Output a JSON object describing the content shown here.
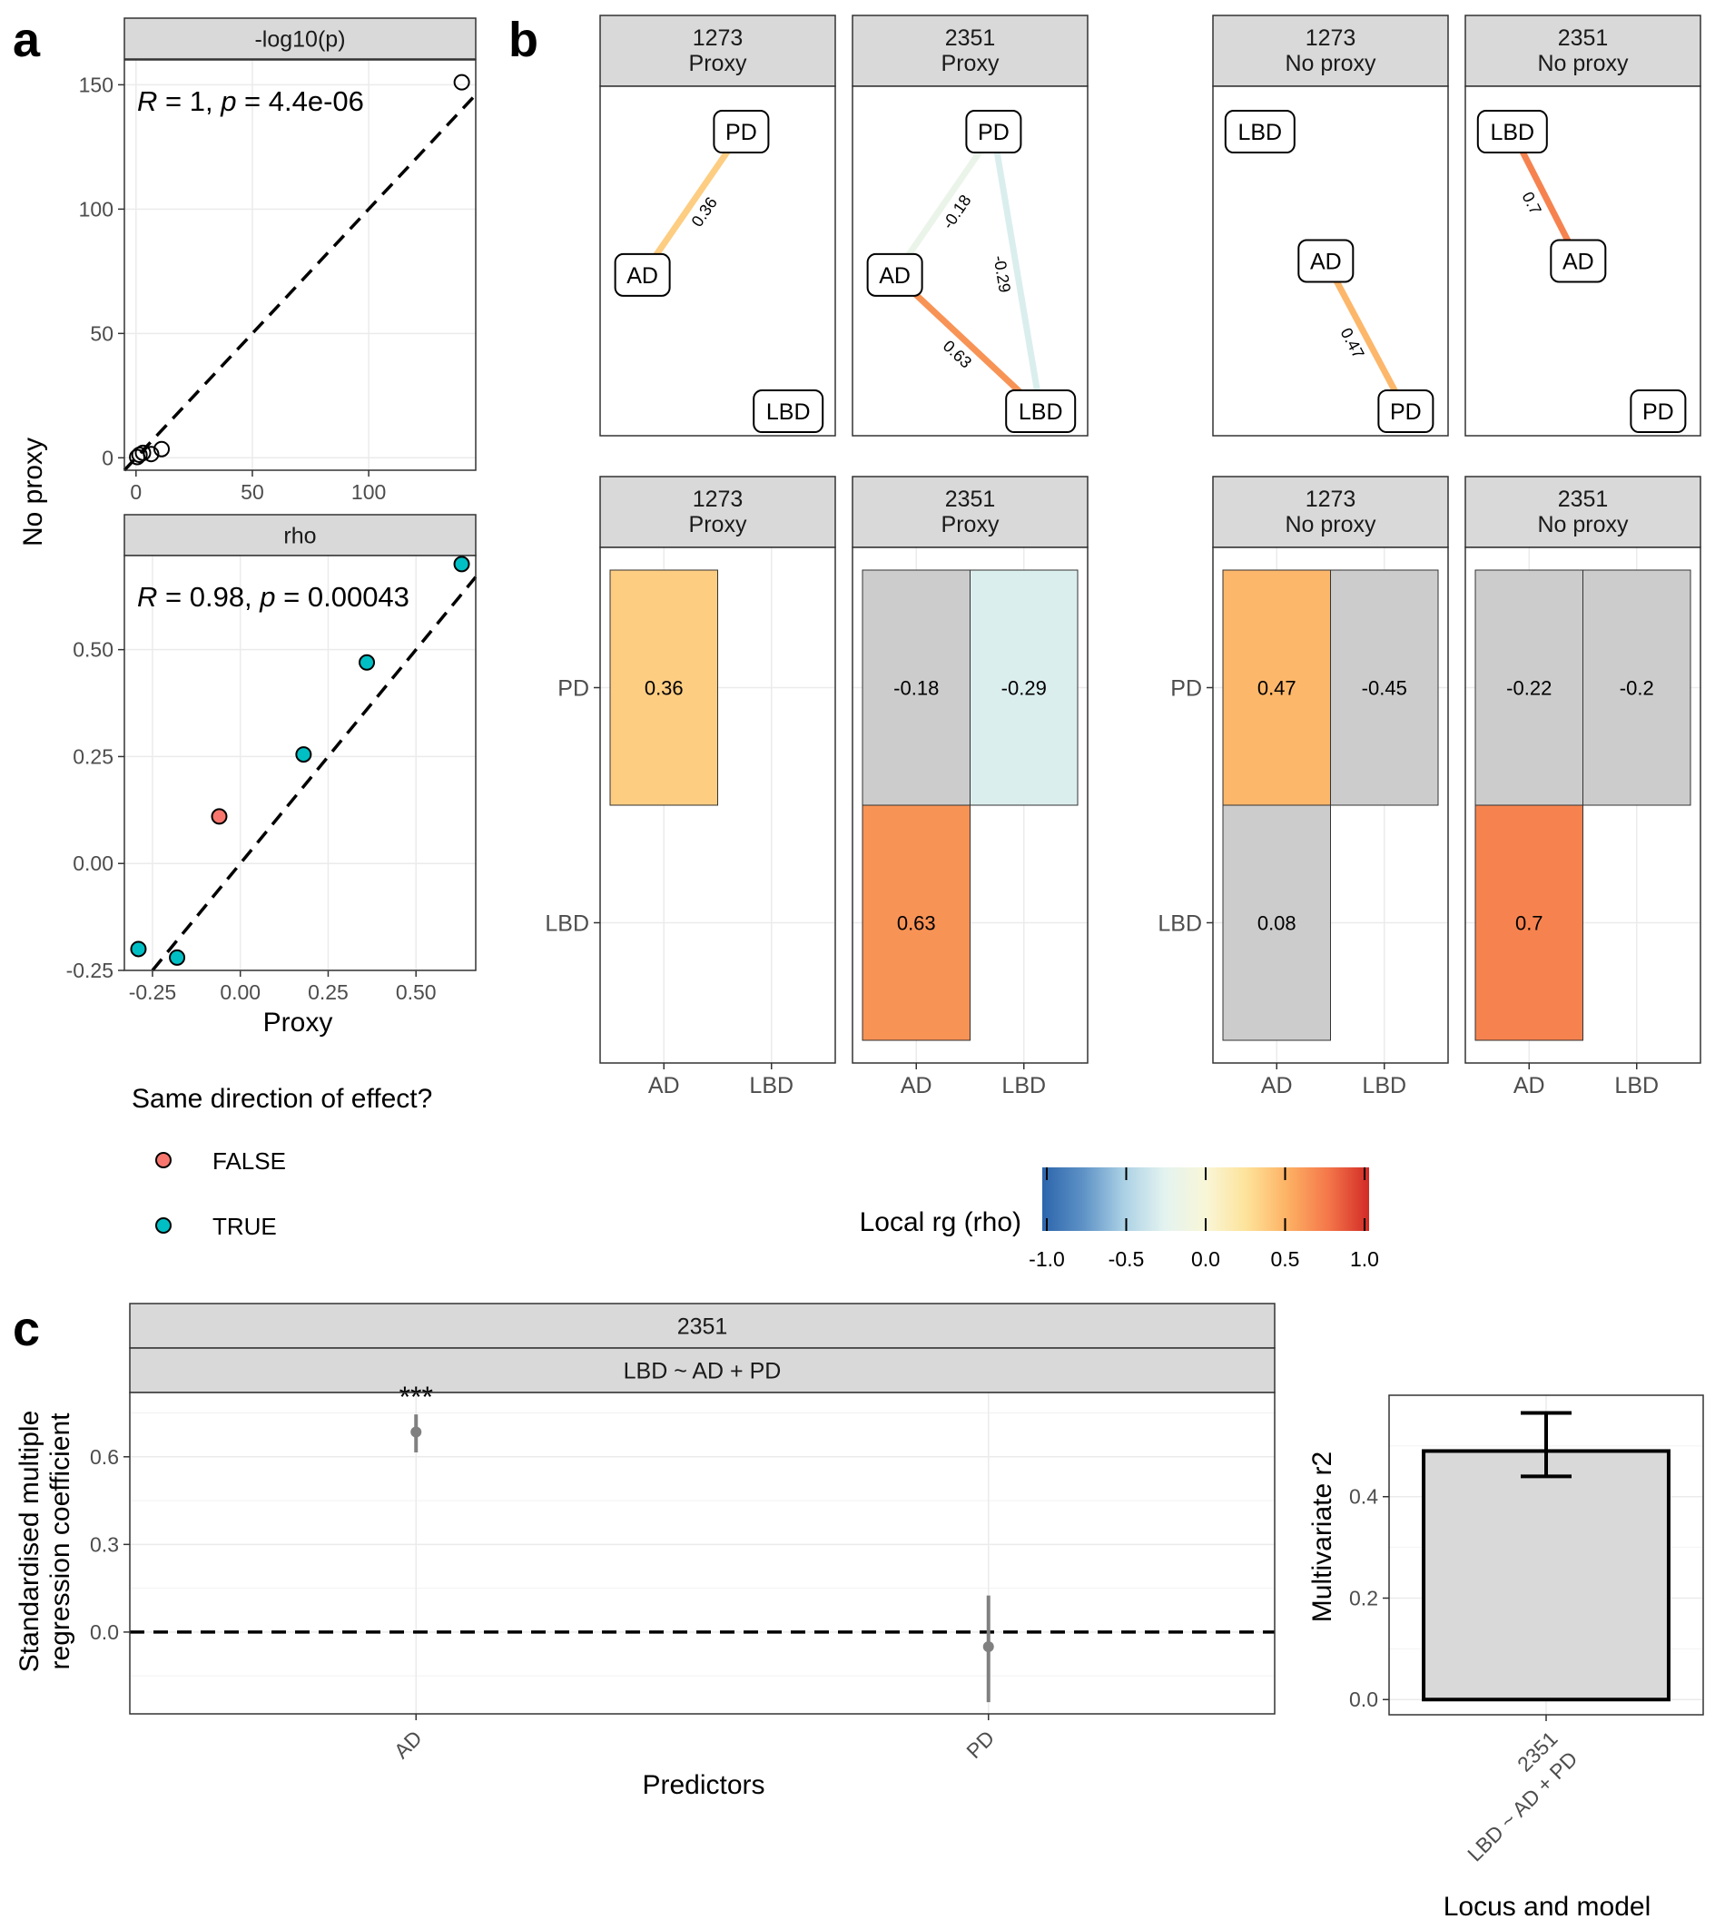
{
  "panel_labels": {
    "a": "a",
    "b": "b",
    "c": "c"
  },
  "chart_data": [
    {
      "id": "a1",
      "type": "scatter",
      "strip": "-log10(p)",
      "points": [
        [
          0.5,
          0.3
        ],
        [
          1.5,
          1.2
        ],
        [
          3.0,
          2.0
        ],
        [
          6.5,
          1.5
        ],
        [
          11,
          3.5
        ],
        [
          140,
          151
        ]
      ],
      "annotation": {
        "R": "1",
        "p": "4.4e-06"
      },
      "xlim": [
        -5,
        146
      ],
      "ylim": [
        -5,
        160
      ],
      "xticks": [
        0,
        50,
        100
      ],
      "yticks": [
        0,
        50,
        100,
        150
      ],
      "reference_line": "y = x",
      "grid": true
    },
    {
      "id": "a2",
      "type": "scatter",
      "strip": "rho",
      "points": [
        {
          "x": -0.06,
          "y": 0.11,
          "same": "FALSE"
        },
        {
          "x": -0.29,
          "y": -0.2,
          "same": "TRUE"
        },
        {
          "x": -0.18,
          "y": -0.22,
          "same": "TRUE"
        },
        {
          "x": 0.18,
          "y": 0.255,
          "same": "TRUE"
        },
        {
          "x": 0.36,
          "y": 0.47,
          "same": "TRUE"
        },
        {
          "x": 0.63,
          "y": 0.7,
          "same": "TRUE"
        }
      ],
      "annotation": {
        "R": "0.98",
        "p": "0.00043"
      },
      "xlim": [
        -0.33,
        0.67
      ],
      "ylim": [
        -0.25,
        0.72
      ],
      "xticks": [
        "-0.25",
        "0.00",
        "0.25",
        "0.50"
      ],
      "yticks": [
        "-0.25",
        "0.00",
        "0.25",
        "0.50"
      ],
      "reference_line": "y = x",
      "grid": true
    }
  ],
  "panel_a": {
    "xlabel": "Proxy",
    "ylabel": "No proxy"
  },
  "legend_a": {
    "title": "Same direction of effect?",
    "items": [
      {
        "label": "FALSE",
        "color": "#F8766D"
      },
      {
        "label": "TRUE",
        "color": "#00BFC4"
      }
    ]
  },
  "network_panels": [
    {
      "line1": "1273",
      "line2": "Proxy",
      "nodes": {
        "PD": [
          0.6,
          0.13
        ],
        "AD": [
          0.18,
          0.54
        ],
        "LBD": [
          0.8,
          0.93
        ]
      },
      "edges": [
        {
          "from": "AD",
          "to": "PD",
          "rho": 0.36,
          "label": "0.36"
        }
      ]
    },
    {
      "line1": "2351",
      "line2": "Proxy",
      "nodes": {
        "PD": [
          0.6,
          0.13
        ],
        "AD": [
          0.18,
          0.54
        ],
        "LBD": [
          0.8,
          0.93
        ]
      },
      "edges": [
        {
          "from": "AD",
          "to": "PD",
          "rho": -0.18,
          "label": "-0.18"
        },
        {
          "from": "PD",
          "to": "LBD",
          "rho": -0.29,
          "label": "-0.29"
        },
        {
          "from": "AD",
          "to": "LBD",
          "rho": 0.63,
          "label": "0.63"
        }
      ]
    },
    {
      "line1": "1273",
      "line2": "No proxy",
      "nodes": {
        "LBD": [
          0.2,
          0.13
        ],
        "AD": [
          0.48,
          0.5
        ],
        "PD": [
          0.82,
          0.93
        ]
      },
      "edges": [
        {
          "from": "AD",
          "to": "PD",
          "rho": 0.47,
          "label": "0.47"
        }
      ]
    },
    {
      "line1": "2351",
      "line2": "No proxy",
      "nodes": {
        "LBD": [
          0.2,
          0.13
        ],
        "AD": [
          0.48,
          0.5
        ],
        "PD": [
          0.82,
          0.93
        ]
      },
      "edges": [
        {
          "from": "LBD",
          "to": "AD",
          "rho": 0.7,
          "label": "0.7"
        }
      ]
    }
  ],
  "heatmap_panels": [
    {
      "line1": "1273",
      "line2": "Proxy",
      "cells": [
        {
          "col": "AD",
          "row": "PD",
          "value": 0.36,
          "label": "0.36",
          "significant": true
        }
      ]
    },
    {
      "line1": "2351",
      "line2": "Proxy",
      "cells": [
        {
          "col": "AD",
          "row": "PD",
          "value": -0.18,
          "label": "-0.18",
          "significant": false
        },
        {
          "col": "LBD",
          "row": "PD",
          "value": -0.29,
          "label": "-0.29",
          "significant": true
        },
        {
          "col": "AD",
          "row": "LBD",
          "value": 0.63,
          "label": "0.63",
          "significant": true
        }
      ]
    },
    {
      "line1": "1273",
      "line2": "No proxy",
      "cells": [
        {
          "col": "AD",
          "row": "PD",
          "value": 0.47,
          "label": "0.47",
          "significant": true
        },
        {
          "col": "LBD",
          "row": "PD",
          "value": -0.45,
          "label": "-0.45",
          "significant": false
        },
        {
          "col": "AD",
          "row": "LBD",
          "value": 0.08,
          "label": "0.08",
          "significant": false
        }
      ]
    },
    {
      "line1": "2351",
      "line2": "No proxy",
      "cells": [
        {
          "col": "AD",
          "row": "PD",
          "value": -0.22,
          "label": "-0.22",
          "significant": false
        },
        {
          "col": "LBD",
          "row": "PD",
          "value": -0.2,
          "label": "-0.2",
          "significant": false
        },
        {
          "col": "AD",
          "row": "LBD",
          "value": 0.7,
          "label": "0.7",
          "significant": true
        }
      ]
    }
  ],
  "heatmap_axes": {
    "x": [
      "AD",
      "LBD"
    ],
    "y": [
      "PD",
      "LBD"
    ]
  },
  "colorbar": {
    "title": "Local rg (rho)",
    "ticks": [
      "-1.0",
      "-0.5",
      "0.0",
      "0.5",
      "1.0"
    ],
    "stops": [
      "#2c65ab",
      "#5e92c6",
      "#abd1e5",
      "#e4f3f0",
      "#f9f6d7",
      "#fde39a",
      "#fdb164",
      "#f4774a",
      "#d22b26"
    ]
  },
  "panel_c": {
    "strip1": "2351",
    "strip2": "LBD ~ AD + PD",
    "xlabel": "Predictors",
    "ylabel_line1": "Standardised multiple",
    "ylabel_line2": "regression coefficient",
    "categories": [
      "AD",
      "PD"
    ],
    "estimates": [
      0.685,
      -0.05
    ],
    "lower": [
      0.615,
      -0.24
    ],
    "upper": [
      0.745,
      0.125
    ],
    "significance": [
      "***",
      ""
    ],
    "ylim": [
      -0.28,
      0.82
    ],
    "yticks": [
      "0.0",
      "0.3",
      "0.6"
    ]
  },
  "panel_c2": {
    "xlabel": "Locus and model",
    "ylabel": "Multivariate r2",
    "category_line1": "2351",
    "category_line2": "LBD ~ AD + PD",
    "value": 0.49,
    "error": [
      0.44,
      0.565
    ],
    "ylim": [
      -0.03,
      0.6
    ],
    "yticks": [
      "0.0",
      "0.2",
      "0.4"
    ]
  }
}
